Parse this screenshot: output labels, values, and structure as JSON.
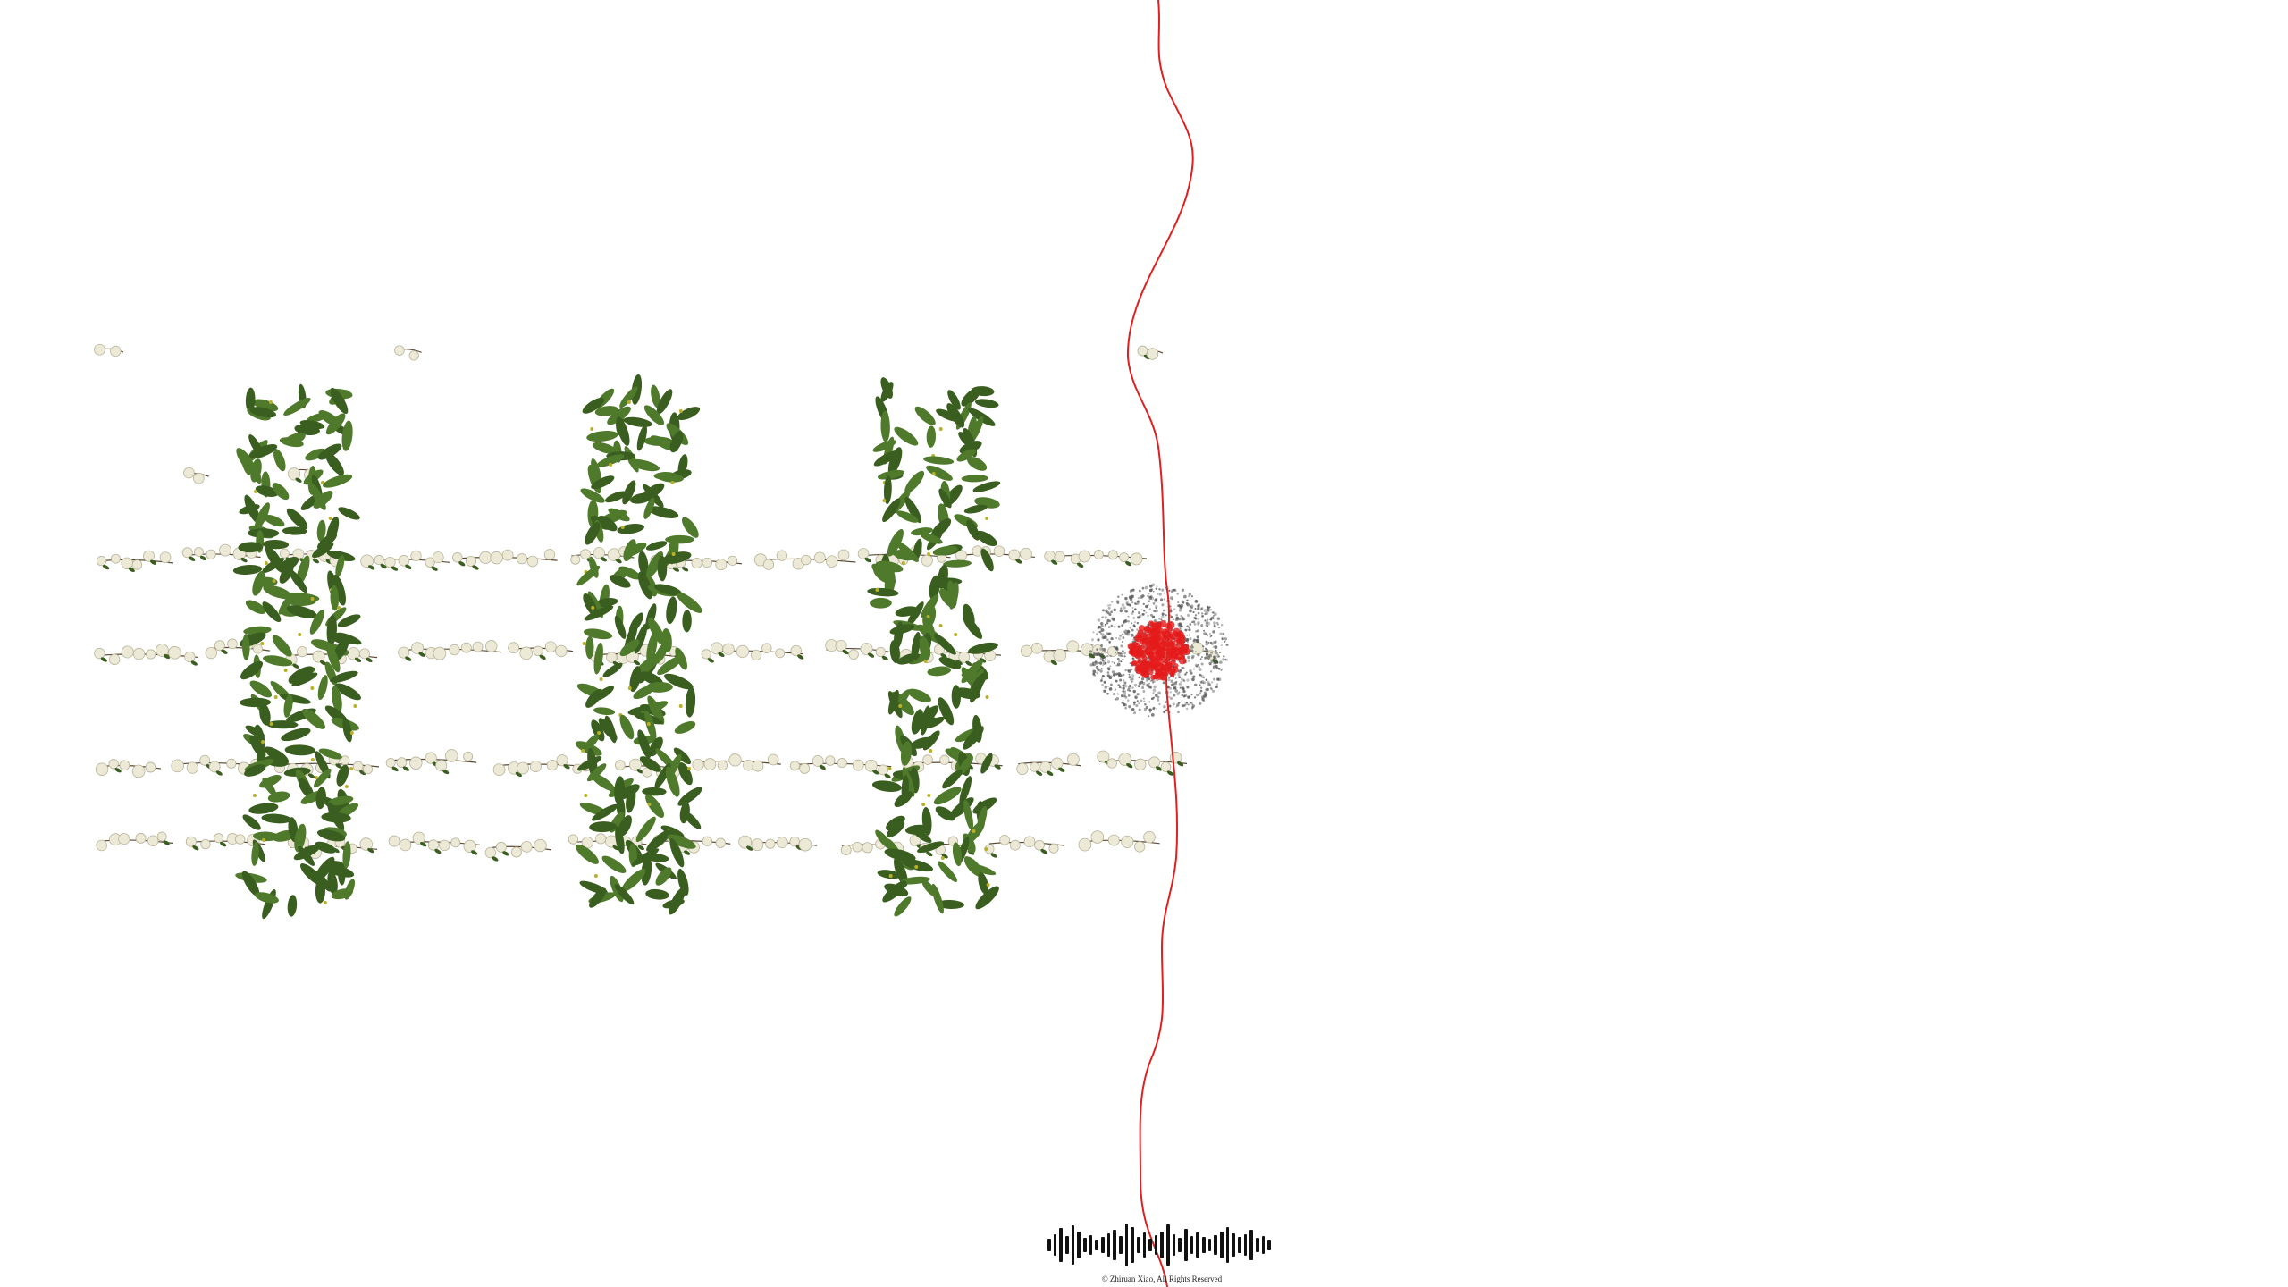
{
  "footer": {
    "copyright": "© Zhiruan Xiao, All Rights Reserved"
  },
  "colors": {
    "background": "#ffffff",
    "leaf": "#4f7a2c",
    "leaf_dark": "#3a5e1f",
    "blossom": "#ece9d6",
    "blossom_edge": "#b9b49a",
    "thread": "#e02020",
    "cluster": "#e51b1b",
    "particles": "#555555",
    "waveform": "#111111"
  },
  "icons": {
    "audio_control": "waveform-icon"
  }
}
